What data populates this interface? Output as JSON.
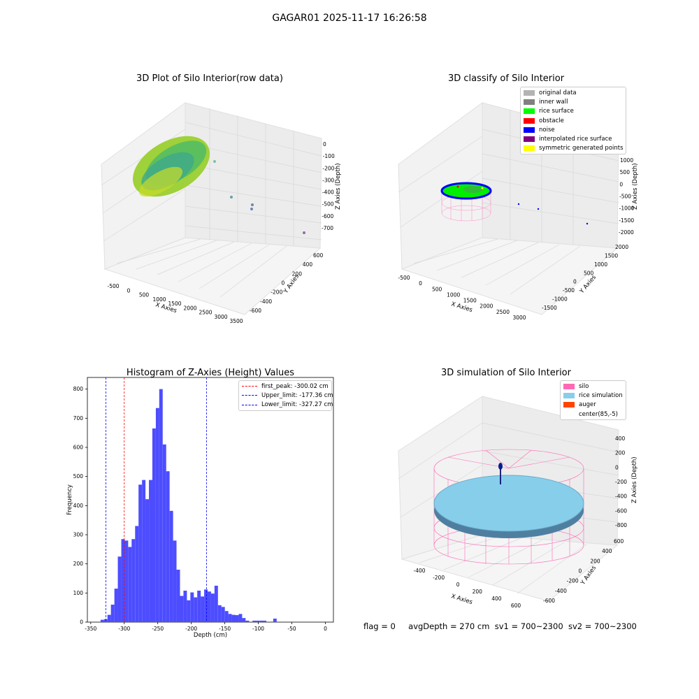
{
  "figure": {
    "suptitle": "GAGAR01 2025-11-17 16:26:58"
  },
  "panels": {
    "raw": {
      "title": "3D Plot of Silo Interior(row data)",
      "xlabel": "X Axies",
      "ylabel": "Y Axies",
      "zlabel": "Z Axies (Depth)",
      "xticks": [
        "-500",
        "0",
        "500",
        "1000",
        "1500",
        "2000",
        "2500",
        "3000",
        "3500"
      ],
      "yticks": [
        "600",
        "400",
        "200",
        "0",
        "-200",
        "-400",
        "-600"
      ],
      "zticks": [
        "0",
        "-100",
        "-200",
        "-300",
        "-400",
        "-500",
        "-600",
        "-700"
      ]
    },
    "classify": {
      "title": "3D classify of Silo Interior",
      "xlabel": "X Axies",
      "ylabel": "Y Axies",
      "zlabel": "Z Axies (Depth)",
      "xticks": [
        "-500",
        "0",
        "500",
        "1000",
        "1500",
        "2000",
        "2500",
        "3000"
      ],
      "yticks": [
        "2000",
        "1500",
        "1000",
        "500",
        "0",
        "-500",
        "-1000",
        "-1500"
      ],
      "zticks": [
        "1000",
        "500",
        "0",
        "-500",
        "-1000",
        "-1500",
        "-2000"
      ],
      "legend": [
        {
          "label": "original data",
          "color": "#b3b3b3"
        },
        {
          "label": "inner wall",
          "color": "#808080"
        },
        {
          "label": "rice surface",
          "color": "#00ff00"
        },
        {
          "label": "obstacle",
          "color": "#ff0000"
        },
        {
          "label": "noise",
          "color": "#0000ff"
        },
        {
          "label": "interpolated rice surface",
          "color": "#800080"
        },
        {
          "label": "symmetric generated points",
          "color": "#ffff00"
        }
      ]
    },
    "simulation": {
      "title": "3D simulation of Silo Interior",
      "xlabel": "X Axies",
      "ylabel": "Y Axies",
      "zlabel": "Z Axies (Depth)",
      "xticks": [
        "-400",
        "-200",
        "0",
        "200",
        "400",
        "600"
      ],
      "yticks": [
        "600",
        "400",
        "200",
        "0",
        "-200",
        "-400",
        "-600"
      ],
      "zticks": [
        "400",
        "200",
        "0",
        "-200",
        "-400",
        "-600",
        "-800"
      ],
      "legend": [
        {
          "label": "silo",
          "color": "#ff69b4"
        },
        {
          "label": "rice simulation",
          "color": "#87ceeb"
        },
        {
          "label": "auger",
          "color": "#ff4500"
        },
        {
          "label": "center(85,-5)",
          "color": "#ffffff"
        }
      ]
    }
  },
  "chart_data": {
    "type": "bar",
    "title": "Histogram of Z-Axies (Height) Values",
    "xlabel": "Depth (cm)",
    "ylabel": "Frequency",
    "xlim": [
      -355,
      12
    ],
    "ylim": [
      0,
      840
    ],
    "xticks": [
      -350,
      -300,
      -250,
      -200,
      -150,
      -100,
      -50,
      0
    ],
    "yticks": [
      0,
      100,
      200,
      300,
      400,
      500,
      600,
      700,
      800
    ],
    "bar_color": "#4d4dff",
    "bin_width": 5.15,
    "bin_starts": [
      -335.3,
      -330.2,
      -325.0,
      -319.9,
      -314.7,
      -309.6,
      -304.4,
      -299.3,
      -294.1,
      -289.0,
      -283.8,
      -278.7,
      -273.5,
      -268.4,
      -263.2,
      -258.1,
      -252.9,
      -247.8,
      -242.6,
      -237.5,
      -232.3,
      -227.2,
      -222.0,
      -216.9,
      -211.7,
      -206.6,
      -201.4,
      -196.3,
      -191.1,
      -186.0,
      -180.8,
      -175.7,
      -170.5,
      -165.4,
      -160.2,
      -155.1,
      -149.9,
      -144.8,
      -139.6,
      -134.5,
      -129.3,
      -124.2,
      -119.0,
      -113.9,
      -108.7,
      -103.6,
      -98.4,
      -93.3,
      -88.1,
      -83.0,
      -77.8,
      -72.7,
      -67.5,
      -62.4,
      -57.2,
      -52.1,
      -46.9,
      -41.8,
      -36.6,
      -31.5,
      -26.3,
      -21.2,
      -16.0,
      -10.9,
      -5.7,
      -0.6
    ],
    "values": [
      8,
      10,
      25,
      60,
      115,
      225,
      285,
      280,
      258,
      285,
      330,
      472,
      488,
      422,
      488,
      665,
      735,
      800,
      610,
      518,
      382,
      280,
      180,
      90,
      108,
      75,
      102,
      85,
      108,
      88,
      112,
      105,
      98,
      125,
      58,
      52,
      38,
      28,
      25,
      24,
      28,
      14,
      5,
      0,
      5,
      5,
      5,
      5,
      0,
      0,
      12,
      0,
      0,
      0,
      0,
      0,
      0,
      0,
      0,
      0,
      0,
      0,
      0,
      0,
      0,
      0
    ],
    "vlines": [
      {
        "label": "first_peak: -300.02 cm",
        "x": -300.02,
        "color": "#ff0000"
      },
      {
        "label": "Upper_limit: -177.36 cm",
        "x": -177.36,
        "color": "#0000ff"
      },
      {
        "label": "Lower_limit: -327.27 cm",
        "x": -327.27,
        "color": "#0000ff"
      }
    ]
  },
  "status": {
    "flag": "flag = 0",
    "avg_depth": "avgDepth = 270 cm",
    "sv1": "sv1 = 700~2300",
    "sv2": "sv2 = 700~2300"
  }
}
